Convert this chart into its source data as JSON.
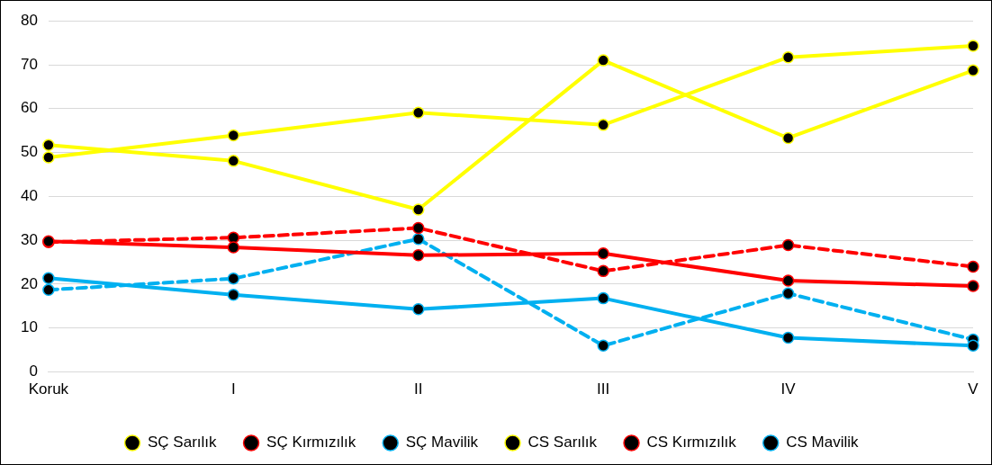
{
  "chart_data": {
    "type": "line",
    "categories": [
      "Koruk",
      "I",
      "II",
      "III",
      "IV",
      "V"
    ],
    "ylim": [
      0,
      80
    ],
    "yticks": [
      0,
      10,
      20,
      30,
      40,
      50,
      60,
      70,
      80
    ],
    "grid": "y",
    "legend": "bottom",
    "marker": "circle",
    "series": [
      {
        "name": "SÇ Sarılık",
        "color": "#ffff00",
        "line_style": "solid",
        "values": [
          51.7,
          48.1,
          37,
          71,
          53.3,
          68.7
        ]
      },
      {
        "name": "SÇ Kırmızılık",
        "color": "#ff0000",
        "line_style": "solid",
        "values": [
          29.8,
          28.4,
          26.6,
          27,
          20.8,
          19.6
        ]
      },
      {
        "name": "SÇ Mavilik",
        "color": "#00b0f0",
        "line_style": "solid",
        "values": [
          21.4,
          17.6,
          14.3,
          16.8,
          7.8,
          6
        ]
      },
      {
        "name": "CS Sarılık",
        "color": "#ffff00",
        "line_style": "solid",
        "values": [
          48.9,
          53.9,
          59.1,
          56.3,
          71.7,
          74.3
        ]
      },
      {
        "name": "CS Kırmızılık",
        "color": "#ff0000",
        "line_style": "dashed",
        "values": [
          29.6,
          30.6,
          32.8,
          23,
          28.9,
          24
        ]
      },
      {
        "name": "CS Mavilik",
        "color": "#00b0f0",
        "line_style": "dashed",
        "values": [
          18.7,
          21.3,
          30.3,
          6,
          17.9,
          7.4
        ]
      }
    ]
  }
}
